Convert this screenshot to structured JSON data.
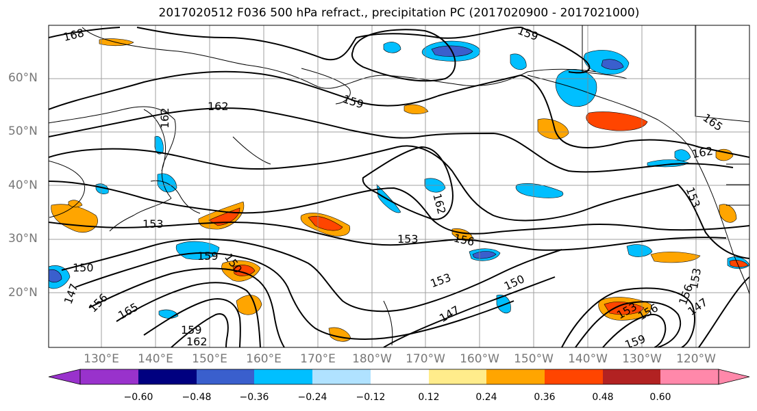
{
  "title": "2017020512 F036 500 hPa refract., precipitation PC (2017020900 - 2017021000)",
  "lat_labels": [
    "60°N",
    "50°N",
    "40°N",
    "30°N",
    "20°N"
  ],
  "lon_labels": [
    "130°E",
    "140°E",
    "150°E",
    "160°E",
    "170°E",
    "180°W",
    "170°W",
    "160°W",
    "150°W",
    "140°W",
    "130°W",
    "120°W"
  ],
  "colorbar": {
    "ticks": [
      "−0.60",
      "−0.48",
      "−0.36",
      "−0.24",
      "−0.12",
      "0.12",
      "0.24",
      "0.36",
      "0.48",
      "0.60"
    ],
    "colors": [
      "#9932cc",
      "#000080",
      "#3a5fcd",
      "#00bfff",
      "#b0e2ff",
      "#ffffff",
      "#ffec8b",
      "#ffa500",
      "#ff4500",
      "#b22222",
      "#ff88aa"
    ]
  },
  "contour_labels": [
    "168",
    "159",
    "162",
    "159",
    "165",
    "162",
    "153",
    "153",
    "156",
    "153",
    "150",
    "150",
    "162",
    "159",
    "153",
    "156",
    "147",
    "147",
    "156",
    "165",
    "159",
    "162",
    "153",
    "156",
    "159",
    "147",
    "153",
    "150",
    "162"
  ]
}
